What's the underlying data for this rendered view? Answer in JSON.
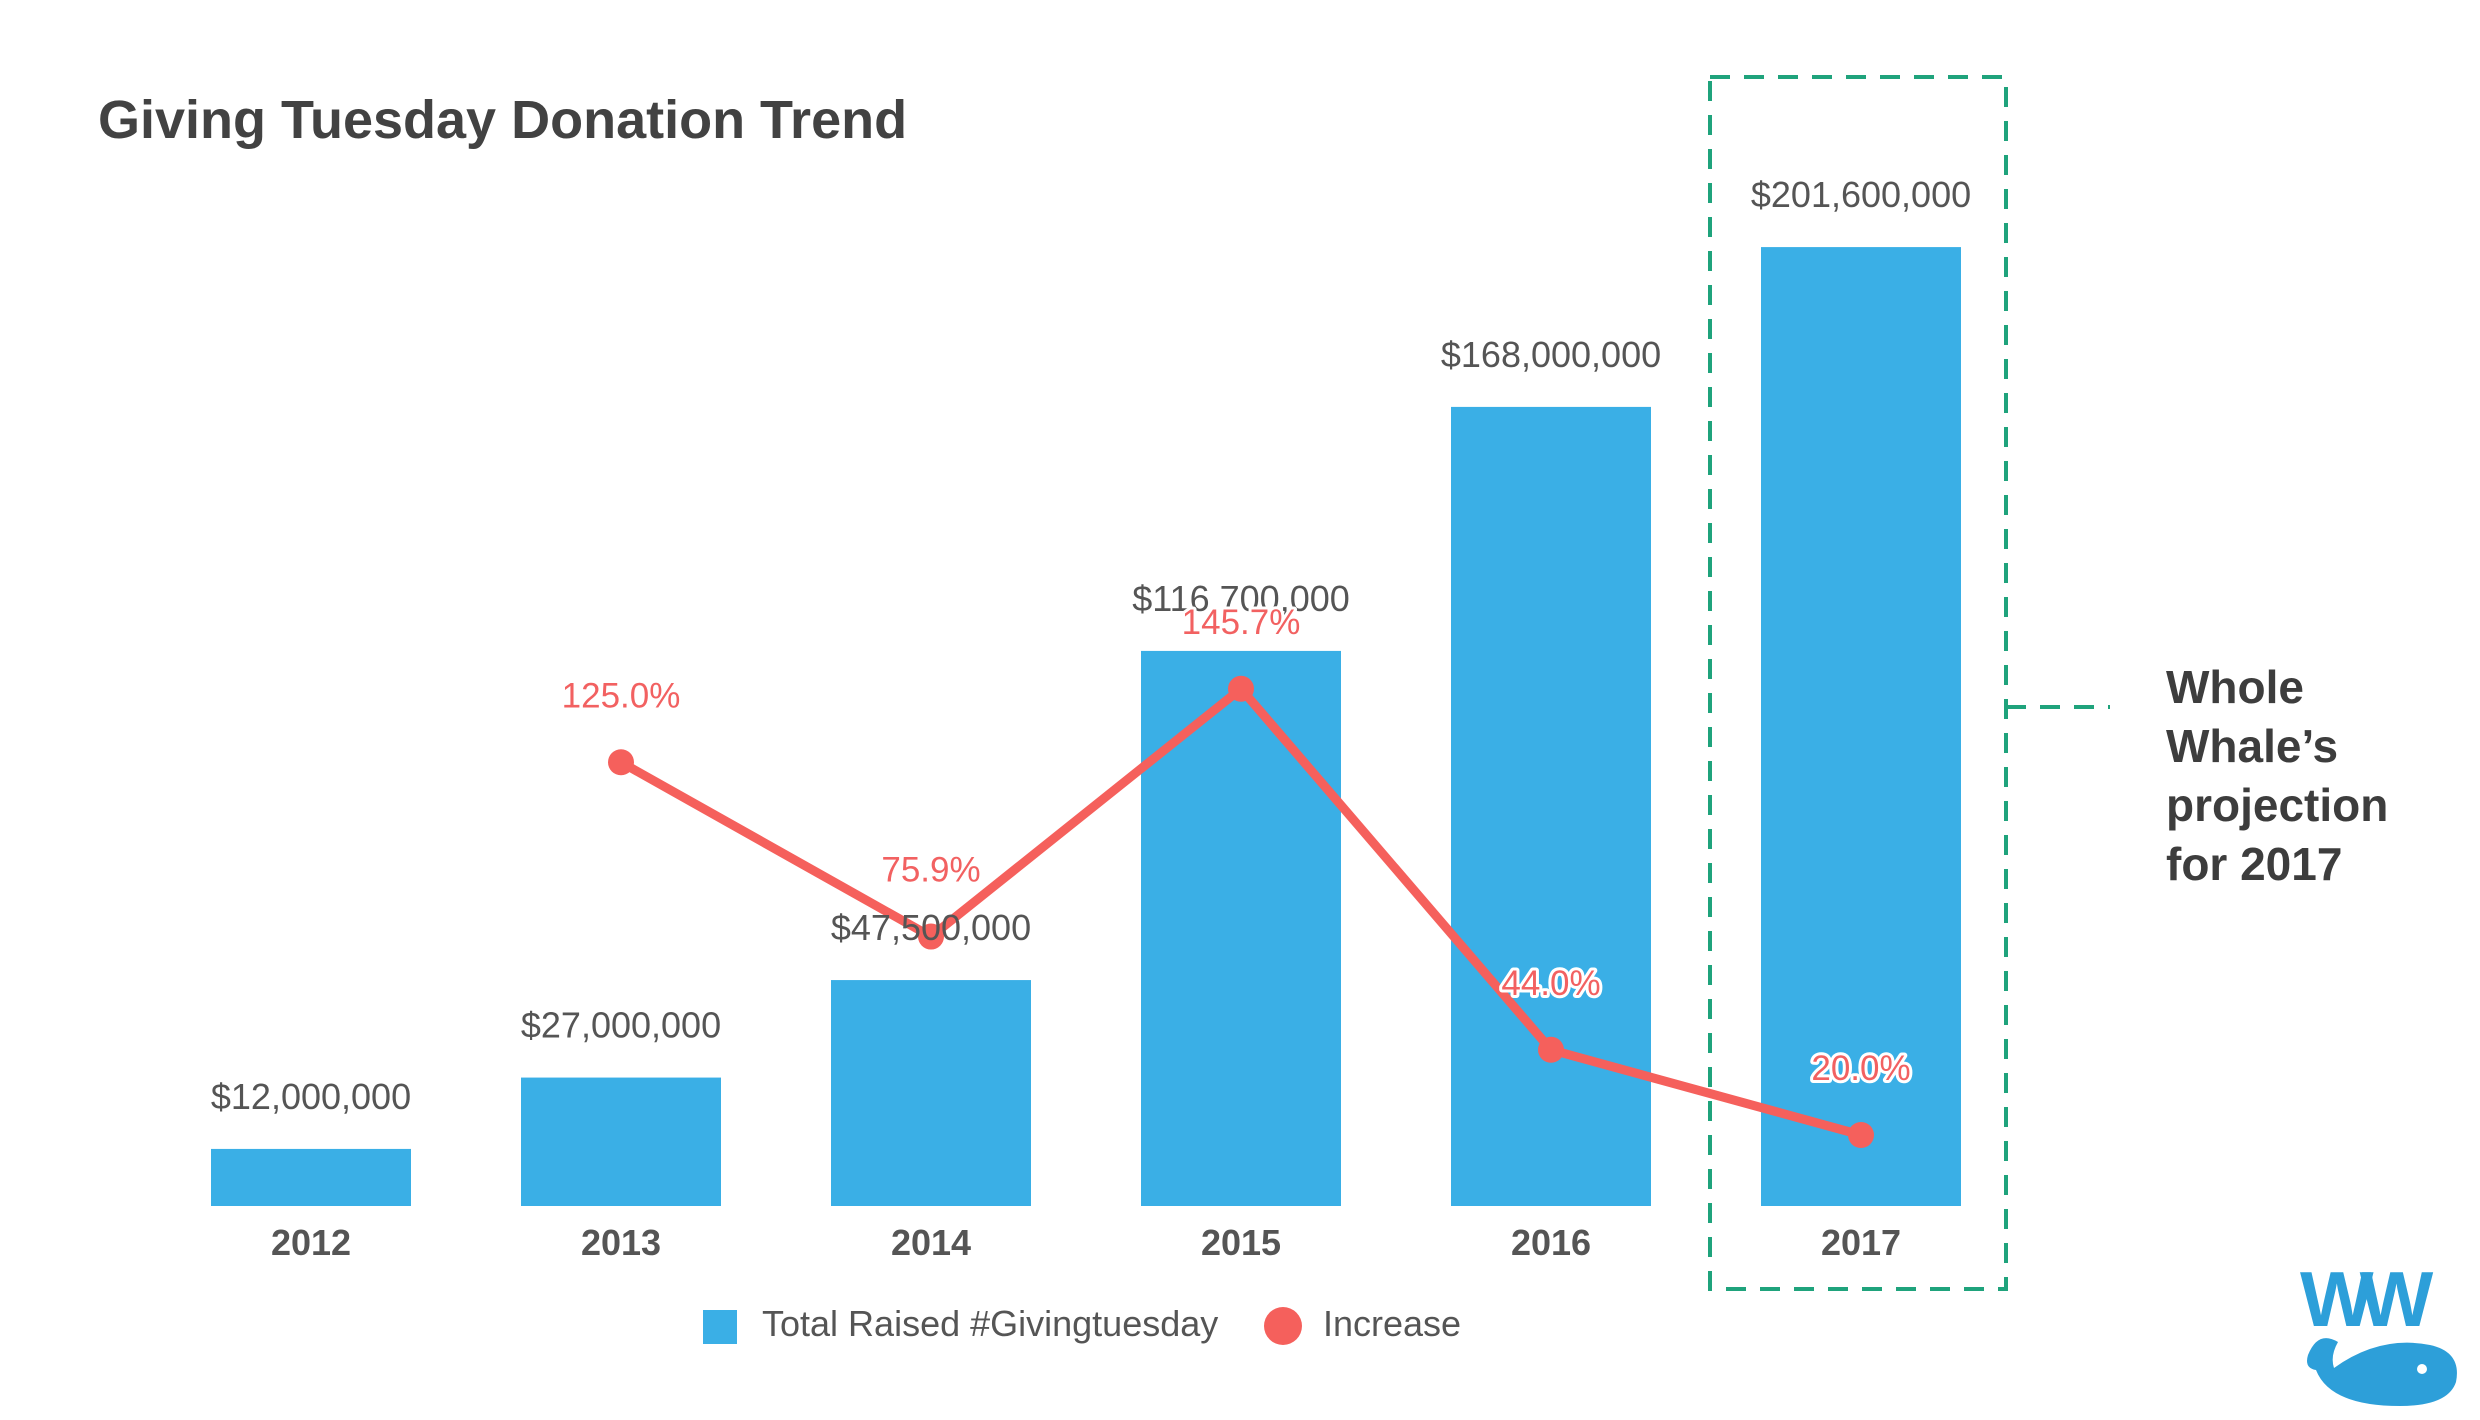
{
  "chart_data": {
    "type": "bar",
    "title": "Giving Tuesday Donation Trend",
    "categories": [
      "2012",
      "2013",
      "2014",
      "2015",
      "2016",
      "2017"
    ],
    "series": [
      {
        "name": "Total Raised #Givingtuesday",
        "type": "bar",
        "color": "#3aafe6",
        "values": [
          12000000,
          27000000,
          47500000,
          116700000,
          168000000,
          201600000
        ],
        "labels": [
          "$12,000,000",
          "$27,000,000",
          "$47,500,000",
          "$116,700,000",
          "$168,000,000",
          "$201,600,000"
        ]
      },
      {
        "name": "Increase",
        "type": "line",
        "color": "#f5605c",
        "values": [
          null,
          125.0,
          75.9,
          145.7,
          44.0,
          20.0
        ],
        "labels": [
          "",
          "125.0%",
          "75.9%",
          "145.7%",
          "44.0%",
          "20.0%"
        ]
      }
    ],
    "bar_ylim": [
      0,
      230000000
    ],
    "line_ylim": [
      0,
      280
    ],
    "grid": false,
    "legend_position": "bottom-center",
    "highlight": {
      "category": "2017",
      "text_lines": [
        "Whole",
        "Whale’s",
        "projection",
        "for 2017"
      ],
      "border_color": "#1fa37c"
    }
  },
  "logo": {
    "text": "WW",
    "color": "#2d9fd9"
  }
}
